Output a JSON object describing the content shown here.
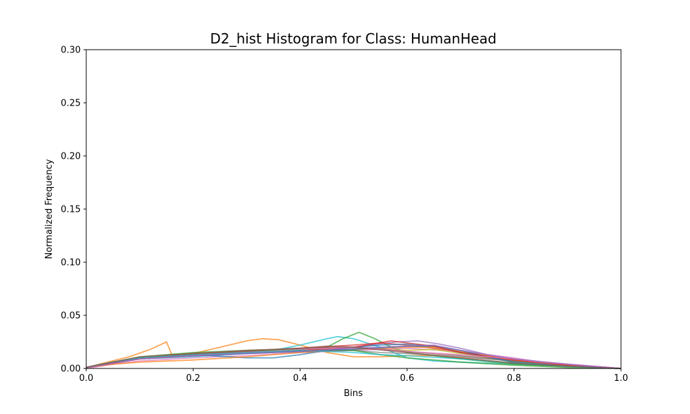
{
  "chart_data": {
    "type": "line",
    "title": "D2_hist Histogram for Class: HumanHead",
    "xlabel": "Bins",
    "ylabel": "Normalized Frequency",
    "xlim": [
      0.0,
      1.0
    ],
    "ylim": [
      0.0,
      0.3
    ],
    "grid": false,
    "legend": "none",
    "x_ticks": [
      "0.0",
      "0.2",
      "0.4",
      "0.6",
      "0.8",
      "1.0"
    ],
    "y_ticks": [
      "0.00",
      "0.05",
      "0.10",
      "0.15",
      "0.20",
      "0.25",
      "0.30"
    ],
    "series": [
      {
        "color": "#ff7f0e",
        "points": [
          [
            0,
            0.001
          ],
          [
            0.04,
            0.006
          ],
          [
            0.08,
            0.011
          ],
          [
            0.12,
            0.018
          ],
          [
            0.15,
            0.025
          ],
          [
            0.16,
            0.013
          ],
          [
            0.2,
            0.014
          ],
          [
            0.25,
            0.02
          ],
          [
            0.3,
            0.026
          ],
          [
            0.33,
            0.028
          ],
          [
            0.36,
            0.027
          ],
          [
            0.4,
            0.022
          ],
          [
            0.45,
            0.015
          ],
          [
            0.5,
            0.011
          ],
          [
            0.55,
            0.011
          ],
          [
            0.6,
            0.012
          ],
          [
            0.65,
            0.012
          ],
          [
            0.7,
            0.01
          ],
          [
            0.75,
            0.007
          ],
          [
            0.8,
            0.005
          ],
          [
            0.85,
            0.003
          ],
          [
            0.9,
            0.002
          ],
          [
            0.95,
            0.001
          ],
          [
            1.0,
            0.0
          ]
        ]
      },
      {
        "color": "#17becf",
        "points": [
          [
            0,
            0.001
          ],
          [
            0.05,
            0.006
          ],
          [
            0.1,
            0.009
          ],
          [
            0.2,
            0.011
          ],
          [
            0.3,
            0.014
          ],
          [
            0.35,
            0.017
          ],
          [
            0.4,
            0.022
          ],
          [
            0.45,
            0.028
          ],
          [
            0.47,
            0.03
          ],
          [
            0.5,
            0.028
          ],
          [
            0.55,
            0.02
          ],
          [
            0.6,
            0.01
          ],
          [
            0.65,
            0.007
          ],
          [
            0.7,
            0.006
          ],
          [
            0.8,
            0.004
          ],
          [
            0.9,
            0.002
          ],
          [
            1.0,
            0.0
          ]
        ]
      },
      {
        "color": "#2ca02c",
        "points": [
          [
            0,
            0.001
          ],
          [
            0.05,
            0.006
          ],
          [
            0.1,
            0.01
          ],
          [
            0.2,
            0.013
          ],
          [
            0.3,
            0.015
          ],
          [
            0.4,
            0.017
          ],
          [
            0.45,
            0.02
          ],
          [
            0.48,
            0.028
          ],
          [
            0.51,
            0.034
          ],
          [
            0.54,
            0.028
          ],
          [
            0.57,
            0.02
          ],
          [
            0.6,
            0.015
          ],
          [
            0.7,
            0.009
          ],
          [
            0.8,
            0.004
          ],
          [
            0.9,
            0.002
          ],
          [
            1.0,
            0.0
          ]
        ]
      },
      {
        "color": "#9467bd",
        "points": [
          [
            0,
            0.001
          ],
          [
            0.05,
            0.005
          ],
          [
            0.1,
            0.009
          ],
          [
            0.2,
            0.012
          ],
          [
            0.3,
            0.015
          ],
          [
            0.4,
            0.018
          ],
          [
            0.5,
            0.02
          ],
          [
            0.58,
            0.025
          ],
          [
            0.62,
            0.026
          ],
          [
            0.66,
            0.023
          ],
          [
            0.7,
            0.019
          ],
          [
            0.75,
            0.013
          ],
          [
            0.8,
            0.008
          ],
          [
            0.9,
            0.003
          ],
          [
            1.0,
            0.0
          ]
        ]
      },
      {
        "color": "#d62728",
        "points": [
          [
            0,
            0.001
          ],
          [
            0.05,
            0.006
          ],
          [
            0.1,
            0.01
          ],
          [
            0.2,
            0.014
          ],
          [
            0.3,
            0.016
          ],
          [
            0.4,
            0.019
          ],
          [
            0.5,
            0.022
          ],
          [
            0.55,
            0.024
          ],
          [
            0.6,
            0.022
          ],
          [
            0.65,
            0.019
          ],
          [
            0.7,
            0.015
          ],
          [
            0.8,
            0.007
          ],
          [
            0.9,
            0.003
          ],
          [
            1.0,
            0.0
          ]
        ]
      },
      {
        "color": "#e377c2",
        "points": [
          [
            0,
            0.0
          ],
          [
            0.05,
            0.004
          ],
          [
            0.1,
            0.007
          ],
          [
            0.2,
            0.01
          ],
          [
            0.3,
            0.012
          ],
          [
            0.4,
            0.015
          ],
          [
            0.5,
            0.017
          ],
          [
            0.6,
            0.019
          ],
          [
            0.7,
            0.016
          ],
          [
            0.75,
            0.013
          ],
          [
            0.8,
            0.01
          ],
          [
            0.85,
            0.006
          ],
          [
            0.9,
            0.004
          ],
          [
            0.95,
            0.002
          ],
          [
            1.0,
            0.0
          ]
        ]
      },
      {
        "color": "#1f77b4",
        "points": [
          [
            0,
            0.001
          ],
          [
            0.05,
            0.006
          ],
          [
            0.1,
            0.01
          ],
          [
            0.2,
            0.013
          ],
          [
            0.3,
            0.01
          ],
          [
            0.35,
            0.01
          ],
          [
            0.4,
            0.013
          ],
          [
            0.45,
            0.017
          ],
          [
            0.5,
            0.02
          ],
          [
            0.55,
            0.022
          ],
          [
            0.6,
            0.023
          ],
          [
            0.65,
            0.021
          ],
          [
            0.7,
            0.015
          ],
          [
            0.8,
            0.006
          ],
          [
            0.9,
            0.002
          ],
          [
            1.0,
            0.0
          ]
        ]
      },
      {
        "color": "#bcbd22",
        "points": [
          [
            0,
            0.001
          ],
          [
            0.05,
            0.006
          ],
          [
            0.1,
            0.01
          ],
          [
            0.2,
            0.013
          ],
          [
            0.3,
            0.015
          ],
          [
            0.4,
            0.018
          ],
          [
            0.5,
            0.02
          ],
          [
            0.55,
            0.018
          ],
          [
            0.6,
            0.017
          ],
          [
            0.65,
            0.018
          ],
          [
            0.7,
            0.014
          ],
          [
            0.8,
            0.006
          ],
          [
            0.9,
            0.002
          ],
          [
            1.0,
            0.0
          ]
        ]
      },
      {
        "color": "#8c564b",
        "points": [
          [
            0,
            0.001
          ],
          [
            0.05,
            0.006
          ],
          [
            0.1,
            0.01
          ],
          [
            0.2,
            0.013
          ],
          [
            0.3,
            0.016
          ],
          [
            0.4,
            0.019
          ],
          [
            0.5,
            0.02
          ],
          [
            0.55,
            0.018
          ],
          [
            0.6,
            0.016
          ],
          [
            0.7,
            0.012
          ],
          [
            0.8,
            0.007
          ],
          [
            0.9,
            0.003
          ],
          [
            1.0,
            0.0
          ]
        ]
      },
      {
        "color": "#7f7f7f",
        "points": [
          [
            0,
            0.001
          ],
          [
            0.05,
            0.005
          ],
          [
            0.1,
            0.009
          ],
          [
            0.2,
            0.012
          ],
          [
            0.3,
            0.014
          ],
          [
            0.4,
            0.016
          ],
          [
            0.5,
            0.017
          ],
          [
            0.55,
            0.015
          ],
          [
            0.6,
            0.014
          ],
          [
            0.7,
            0.011
          ],
          [
            0.8,
            0.007
          ],
          [
            0.9,
            0.003
          ],
          [
            1.0,
            0.0
          ]
        ]
      },
      {
        "color": "#ff7f0e",
        "points": [
          [
            0,
            0.001
          ],
          [
            0.05,
            0.004
          ],
          [
            0.1,
            0.006
          ],
          [
            0.2,
            0.008
          ],
          [
            0.3,
            0.011
          ],
          [
            0.4,
            0.015
          ],
          [
            0.5,
            0.018
          ],
          [
            0.6,
            0.02
          ],
          [
            0.65,
            0.02
          ],
          [
            0.7,
            0.016
          ],
          [
            0.8,
            0.008
          ],
          [
            0.9,
            0.003
          ],
          [
            1.0,
            0.0
          ]
        ]
      },
      {
        "color": "#2ca02c",
        "points": [
          [
            0,
            0.001
          ],
          [
            0.05,
            0.006
          ],
          [
            0.1,
            0.011
          ],
          [
            0.2,
            0.015
          ],
          [
            0.3,
            0.017
          ],
          [
            0.4,
            0.018
          ],
          [
            0.5,
            0.017
          ],
          [
            0.55,
            0.013
          ],
          [
            0.6,
            0.01
          ],
          [
            0.7,
            0.006
          ],
          [
            0.8,
            0.003
          ],
          [
            0.9,
            0.001
          ],
          [
            1.0,
            0.0
          ]
        ]
      },
      {
        "color": "#1f77b4",
        "points": [
          [
            0,
            0.001
          ],
          [
            0.05,
            0.005
          ],
          [
            0.1,
            0.009
          ],
          [
            0.2,
            0.012
          ],
          [
            0.3,
            0.014
          ],
          [
            0.4,
            0.016
          ],
          [
            0.5,
            0.018
          ],
          [
            0.6,
            0.021
          ],
          [
            0.65,
            0.021
          ],
          [
            0.7,
            0.017
          ],
          [
            0.75,
            0.011
          ],
          [
            0.8,
            0.006
          ],
          [
            0.9,
            0.002
          ],
          [
            1.0,
            0.0
          ]
        ]
      },
      {
        "color": "#d62728",
        "points": [
          [
            0,
            0.001
          ],
          [
            0.05,
            0.005
          ],
          [
            0.1,
            0.009
          ],
          [
            0.2,
            0.012
          ],
          [
            0.3,
            0.015
          ],
          [
            0.4,
            0.017
          ],
          [
            0.5,
            0.02
          ],
          [
            0.57,
            0.026
          ],
          [
            0.6,
            0.024
          ],
          [
            0.65,
            0.021
          ],
          [
            0.7,
            0.015
          ],
          [
            0.8,
            0.008
          ],
          [
            0.9,
            0.003
          ],
          [
            1.0,
            0.0
          ]
        ]
      },
      {
        "color": "#e377c2",
        "points": [
          [
            0,
            0.001
          ],
          [
            0.05,
            0.005
          ],
          [
            0.1,
            0.009
          ],
          [
            0.2,
            0.012
          ],
          [
            0.3,
            0.015
          ],
          [
            0.4,
            0.018
          ],
          [
            0.5,
            0.02
          ],
          [
            0.6,
            0.016
          ],
          [
            0.7,
            0.013
          ],
          [
            0.8,
            0.009
          ],
          [
            0.85,
            0.006
          ],
          [
            0.9,
            0.004
          ],
          [
            0.95,
            0.002
          ],
          [
            1.0,
            0.0
          ]
        ]
      },
      {
        "color": "#17becf",
        "points": [
          [
            0,
            0.001
          ],
          [
            0.05,
            0.006
          ],
          [
            0.1,
            0.01
          ],
          [
            0.2,
            0.013
          ],
          [
            0.3,
            0.015
          ],
          [
            0.4,
            0.017
          ],
          [
            0.5,
            0.015
          ],
          [
            0.55,
            0.013
          ],
          [
            0.6,
            0.012
          ],
          [
            0.7,
            0.009
          ],
          [
            0.8,
            0.005
          ],
          [
            0.9,
            0.002
          ],
          [
            1.0,
            0.0
          ]
        ]
      },
      {
        "color": "#9467bd",
        "points": [
          [
            0,
            0.001
          ],
          [
            0.05,
            0.005
          ],
          [
            0.1,
            0.009
          ],
          [
            0.2,
            0.012
          ],
          [
            0.3,
            0.014
          ],
          [
            0.4,
            0.016
          ],
          [
            0.5,
            0.019
          ],
          [
            0.55,
            0.02
          ],
          [
            0.6,
            0.021
          ],
          [
            0.65,
            0.022
          ],
          [
            0.7,
            0.017
          ],
          [
            0.8,
            0.009
          ],
          [
            0.9,
            0.004
          ],
          [
            1.0,
            0.0
          ]
        ]
      },
      {
        "color": "#8c564b",
        "points": [
          [
            0,
            0.001
          ],
          [
            0.05,
            0.006
          ],
          [
            0.1,
            0.011
          ],
          [
            0.2,
            0.014
          ],
          [
            0.3,
            0.017
          ],
          [
            0.4,
            0.019
          ],
          [
            0.45,
            0.021
          ],
          [
            0.5,
            0.02
          ],
          [
            0.6,
            0.015
          ],
          [
            0.7,
            0.01
          ],
          [
            0.8,
            0.005
          ],
          [
            0.9,
            0.002
          ],
          [
            1.0,
            0.0
          ]
        ]
      }
    ]
  }
}
